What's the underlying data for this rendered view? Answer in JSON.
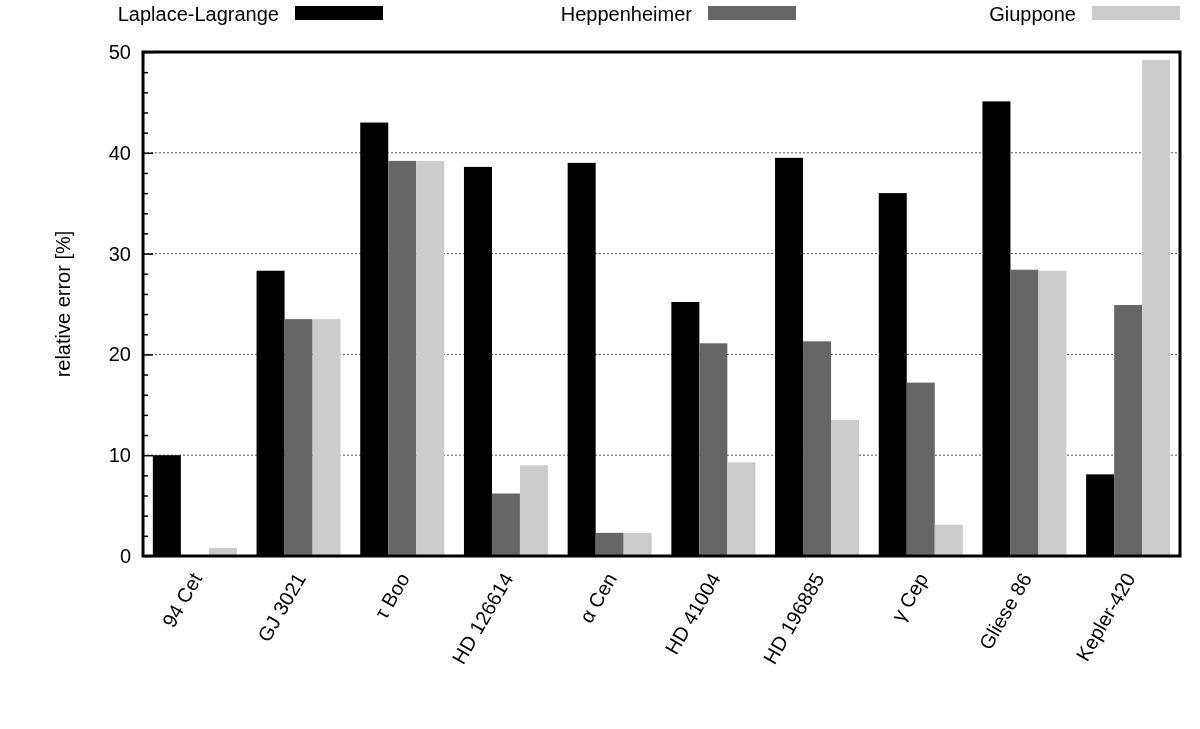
{
  "chart_data": {
    "type": "bar",
    "ylabel": "relative error [%]",
    "categories": [
      "94 Cet",
      "GJ 3021",
      "τ Boo",
      "HD 126614",
      "α Cen",
      "HD 41004",
      "HD 196885",
      "γ Cep",
      "Gliese 86",
      "Kepler-420"
    ],
    "series": [
      {
        "name": "Laplace-Lagrange",
        "color": "#000000",
        "values": [
          10.0,
          28.3,
          43.0,
          38.6,
          39.0,
          25.2,
          39.5,
          36.0,
          45.1,
          8.1
        ]
      },
      {
        "name": "Heppenheimer",
        "color": "#666666",
        "values": [
          0.1,
          23.5,
          39.2,
          6.2,
          2.3,
          21.1,
          21.3,
          17.2,
          28.4,
          24.9
        ]
      },
      {
        "name": "Giuppone",
        "color": "#cccccc",
        "values": [
          0.8,
          23.5,
          39.2,
          9.0,
          2.3,
          9.3,
          13.5,
          3.1,
          28.3,
          49.2
        ]
      }
    ],
    "ylim": [
      0,
      50
    ],
    "yticks": [
      0,
      {
        "value": 2,
        "label": null
      },
      {
        "value": 4,
        "label": null
      },
      {
        "value": 6,
        "label": null
      },
      {
        "value": 8,
        "label": null
      },
      10,
      {
        "value": 12,
        "label": null
      },
      {
        "value": 14,
        "label": null
      },
      {
        "value": 16,
        "label": null
      },
      {
        "value": 18,
        "label": null
      },
      20,
      {
        "value": 22,
        "label": null
      },
      {
        "value": 24,
        "label": null
      },
      {
        "value": 26,
        "label": null
      },
      {
        "value": 28,
        "label": null
      },
      30,
      {
        "value": 32,
        "label": null
      },
      {
        "value": 34,
        "label": null
      },
      {
        "value": 36,
        "label": null
      },
      {
        "value": 38,
        "label": null
      },
      40,
      {
        "value": 42,
        "label": null
      },
      {
        "value": 44,
        "label": null
      },
      {
        "value": 46,
        "label": null
      },
      {
        "value": 48,
        "label": null
      },
      50
    ],
    "grid": "y",
    "legend": "top"
  }
}
